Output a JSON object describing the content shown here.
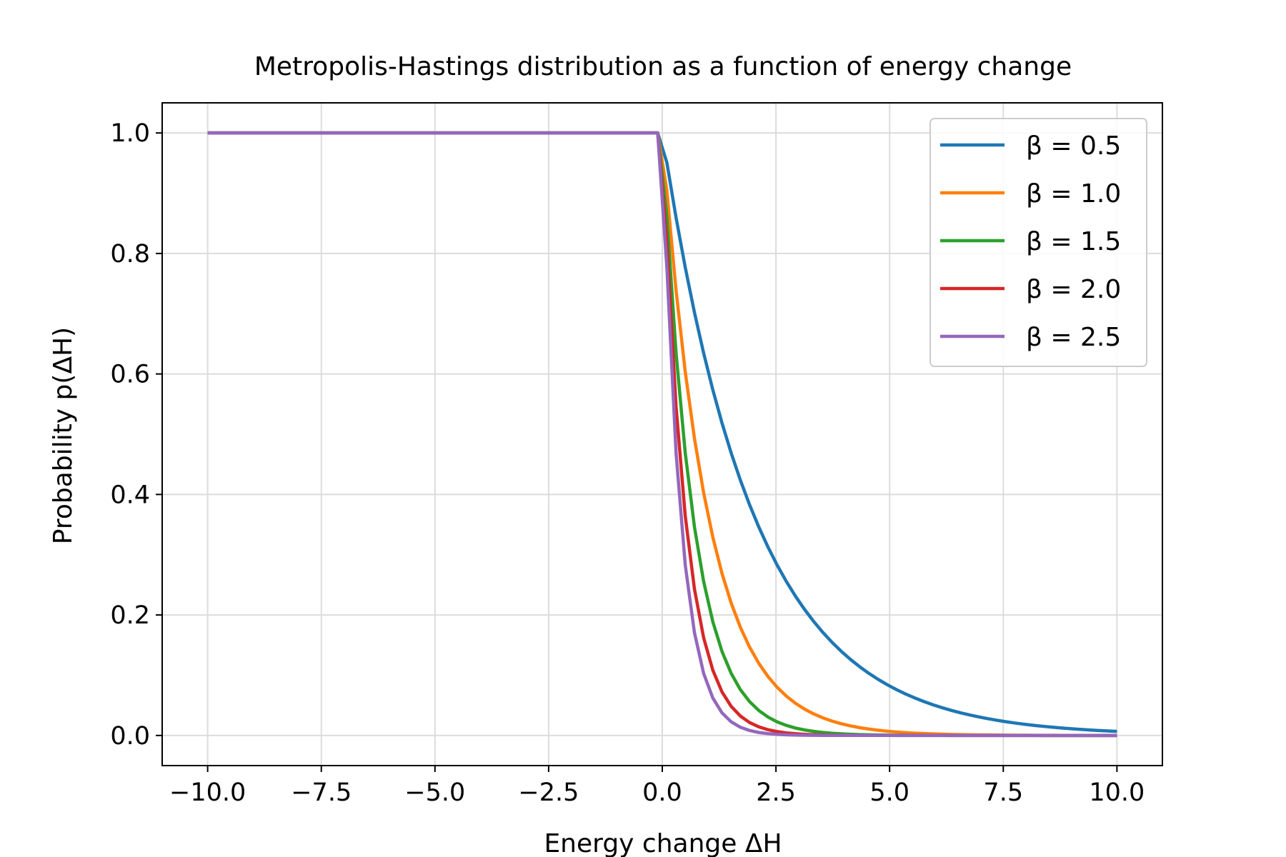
{
  "chart_data": {
    "type": "line",
    "title": "Metropolis-Hastings distribution as a function of energy change",
    "xlabel": "Energy change ΔH",
    "ylabel": "Probability p(ΔH)",
    "xlim": [
      -11,
      11
    ],
    "ylim": [
      -0.05,
      1.05
    ],
    "xticks": [
      -10,
      -7.5,
      -5,
      -2.5,
      0,
      2.5,
      5,
      7.5,
      10
    ],
    "xtick_labels": [
      "−10.0",
      "−7.5",
      "−5.0",
      "−2.5",
      "0.0",
      "2.5",
      "5.0",
      "7.5",
      "10.0"
    ],
    "yticks": [
      0,
      0.2,
      0.4,
      0.6,
      0.8,
      1.0
    ],
    "ytick_labels": [
      "0.0",
      "0.2",
      "0.4",
      "0.6",
      "0.8",
      "1.0"
    ],
    "grid": true,
    "legend_position": "top-right",
    "x_range": [
      -10,
      10
    ],
    "sample_count": 100,
    "series": [
      {
        "name": "β = 0.5",
        "beta": 0.5,
        "color": "#1f77b4"
      },
      {
        "name": "β = 1.0",
        "beta": 1.0,
        "color": "#ff7f0e"
      },
      {
        "name": "β = 1.5",
        "beta": 1.5,
        "color": "#2ca02c"
      },
      {
        "name": "β = 2.0",
        "beta": 2.0,
        "color": "#d62728"
      },
      {
        "name": "β = 2.5",
        "beta": 2.5,
        "color": "#9467bd"
      }
    ]
  }
}
